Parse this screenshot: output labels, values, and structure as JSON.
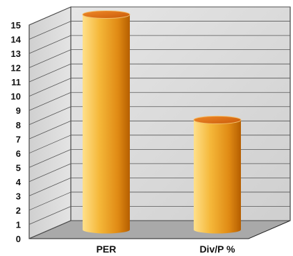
{
  "chart_data": {
    "type": "bar",
    "title": "",
    "xlabel": "",
    "ylabel": "",
    "categories": [
      "PER",
      "Div/P %"
    ],
    "values": [
      15.1,
      7.7
    ],
    "ylim": [
      0,
      15
    ],
    "yticks": [
      "0",
      "1",
      "2",
      "3",
      "4",
      "5",
      "6",
      "7",
      "8",
      "9",
      "10",
      "11",
      "12",
      "13",
      "14",
      "15"
    ],
    "grid": true,
    "legend": "none",
    "style": "3d-cylinder",
    "colors": {
      "bar_light": "#ffe08a",
      "bar_mid": "#f5a82a",
      "bar_dark": "#b55e00",
      "bar_top": "#e46a0a",
      "wall": "#dcdcdc",
      "floor": "#a9a9a9",
      "grid": "#555555"
    }
  }
}
